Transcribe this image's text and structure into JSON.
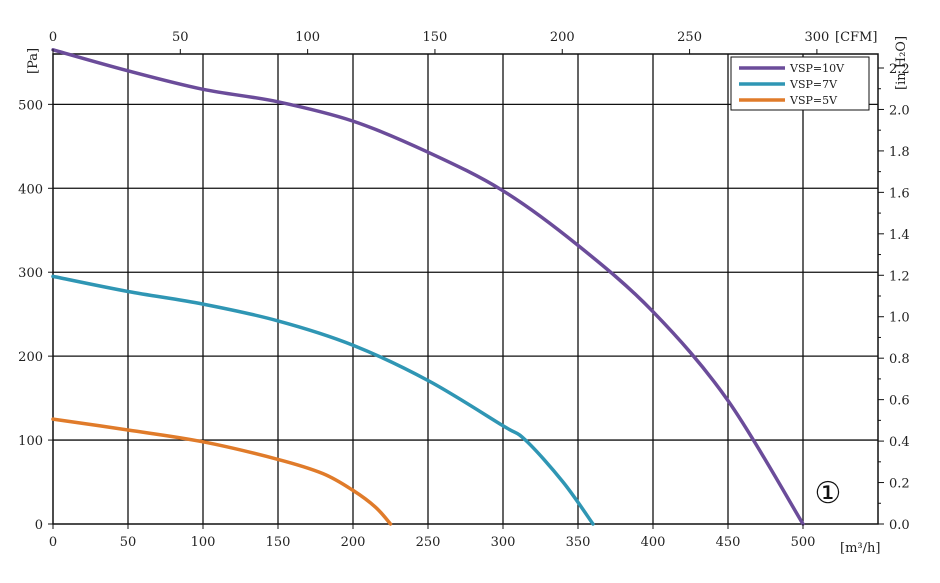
{
  "chart_data": {
    "type": "line",
    "x_bottom": {
      "unit": "[m³/h]",
      "range": [
        0,
        550
      ],
      "ticks": [
        0,
        50,
        100,
        150,
        200,
        250,
        300,
        350,
        400,
        450,
        500
      ]
    },
    "x_top": {
      "unit": "[CFM]",
      "range": [
        0,
        324
      ],
      "ticks": [
        0,
        50,
        100,
        150,
        200,
        250,
        300
      ]
    },
    "y_left": {
      "unit": "[Pa]",
      "range": [
        0,
        560
      ],
      "ticks": [
        0,
        100,
        200,
        300,
        400,
        500
      ]
    },
    "y_right": {
      "unit": "[in H₂O]",
      "ticks": [
        "0.0",
        "0.2",
        "0.4",
        "0.6",
        "0.8",
        "1.0",
        "1.2",
        "1.4",
        "1.6",
        "1.8",
        "2.0",
        "2.2"
      ]
    },
    "grid": true,
    "legend_position": "top-right",
    "series": [
      {
        "name": "VSP=10V",
        "color": "#6b4c9a",
        "points": [
          [
            0,
            565
          ],
          [
            50,
            540
          ],
          [
            100,
            518
          ],
          [
            150,
            503
          ],
          [
            200,
            480
          ],
          [
            250,
            443
          ],
          [
            300,
            397
          ],
          [
            350,
            332
          ],
          [
            400,
            253
          ],
          [
            450,
            147
          ],
          [
            500,
            0
          ]
        ]
      },
      {
        "name": "VSP=7V",
        "color": "#2f96b4",
        "points": [
          [
            0,
            295
          ],
          [
            50,
            277
          ],
          [
            100,
            262
          ],
          [
            150,
            242
          ],
          [
            200,
            213
          ],
          [
            250,
            171
          ],
          [
            300,
            117
          ],
          [
            315,
            100
          ],
          [
            340,
            50
          ],
          [
            360,
            0
          ]
        ]
      },
      {
        "name": "VSP=5V",
        "color": "#e07b2a",
        "points": [
          [
            0,
            125
          ],
          [
            50,
            112
          ],
          [
            100,
            98
          ],
          [
            150,
            77
          ],
          [
            180,
            60
          ],
          [
            200,
            40
          ],
          [
            215,
            20
          ],
          [
            225,
            0
          ]
        ]
      }
    ],
    "annotation": "①"
  }
}
